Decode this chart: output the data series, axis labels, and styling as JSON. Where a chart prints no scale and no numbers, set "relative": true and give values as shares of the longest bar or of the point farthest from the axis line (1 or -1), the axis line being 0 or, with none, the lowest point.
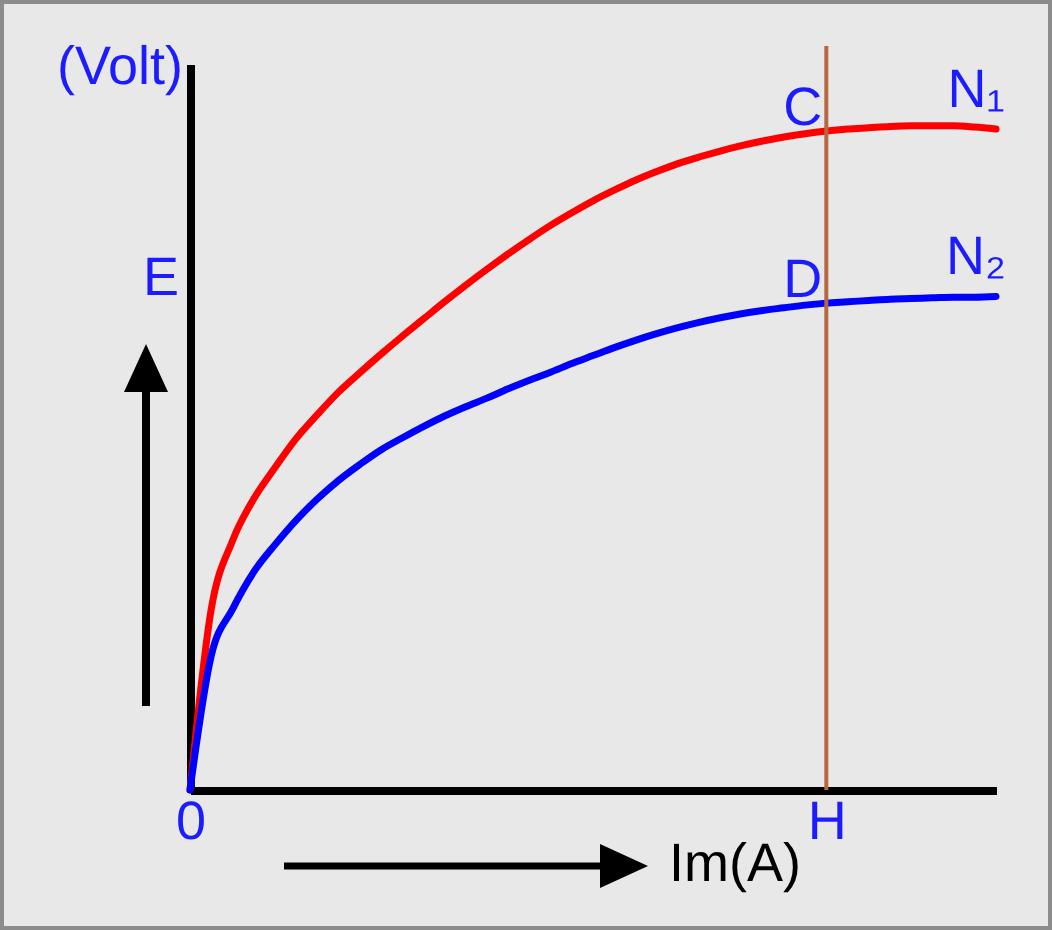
{
  "chart_data": {
    "type": "line",
    "relative": true,
    "xlabel": "Im(A)",
    "ylabel": "E",
    "categories": [
      "0",
      null,
      null,
      null,
      null,
      null,
      null,
      null,
      null,
      null,
      null,
      null,
      null,
      null,
      null,
      null,
      null,
      null,
      null,
      null,
      null,
      null,
      null,
      null,
      null,
      null,
      null,
      null,
      null,
      null,
      "H",
      null,
      null,
      null,
      null,
      null,
      null,
      null,
      null
    ],
    "series": [
      {
        "name": "N₁",
        "color": "#ff0000",
        "values": [
          0,
          0.272,
          0.375,
          0.438,
          0.485,
          0.529,
          0.565,
          0.599,
          0.628,
          0.656,
          0.683,
          0.709,
          0.735,
          0.76,
          0.784,
          0.807,
          0.829,
          0.85,
          0.869,
          0.887,
          0.903,
          0.918,
          0.931,
          0.943,
          0.953,
          0.962,
          0.97,
          0.977,
          0.983,
          0.988,
          0.992,
          0.995,
          0.997,
          0.999,
          1,
          1,
          1,
          0.998,
          0.995
        ]
      },
      {
        "name": "N₂",
        "color": "#0000ff",
        "values": [
          0,
          0.202,
          0.272,
          0.328,
          0.369,
          0.406,
          0.438,
          0.466,
          0.49,
          0.512,
          0.53,
          0.547,
          0.563,
          0.577,
          0.59,
          0.604,
          0.617,
          0.629,
          0.642,
          0.654,
          0.666,
          0.677,
          0.687,
          0.696,
          0.704,
          0.711,
          0.717,
          0.722,
          0.726,
          0.73,
          0.733,
          0.735,
          0.737,
          0.739,
          0.74,
          0.741,
          0.742,
          0.742,
          0.743
        ]
      }
    ],
    "ref_lines": [
      {
        "axis": "x",
        "value": "H",
        "color": "#b8663f"
      }
    ],
    "annotations": [
      "(Volt)",
      {
        "text": "C",
        "x": "H",
        "y": 0.992
      },
      {
        "text": "D",
        "x": "H",
        "y": 0.733
      }
    ]
  }
}
